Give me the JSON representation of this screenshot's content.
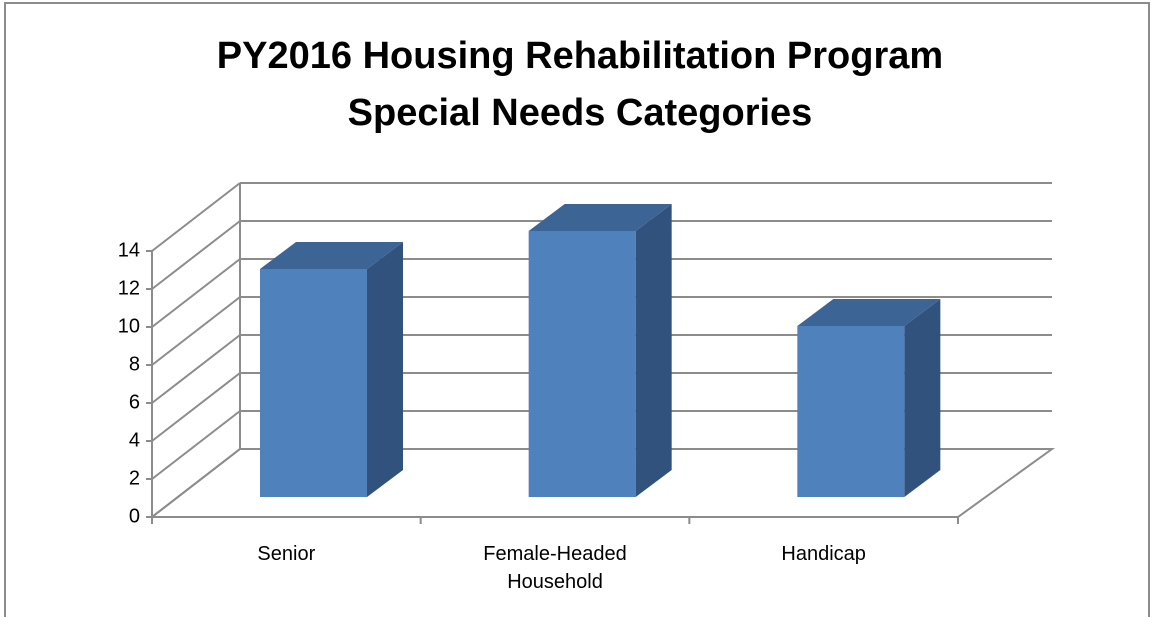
{
  "chart_data": {
    "type": "bar3d",
    "title": "PY2016 Housing Rehabilitation Program Special Needs Categories",
    "title_lines": [
      "PY2016 Housing Rehabilitation Program",
      "Special Needs Categories"
    ],
    "categories": [
      "Senior",
      "Female-Headed Household",
      "Handicap"
    ],
    "values": [
      12,
      14,
      9
    ],
    "color": "#4f81bd",
    "ylim": [
      0,
      14
    ],
    "yticks": [
      0,
      2,
      4,
      6,
      8,
      10,
      12,
      14
    ],
    "grid": true
  }
}
